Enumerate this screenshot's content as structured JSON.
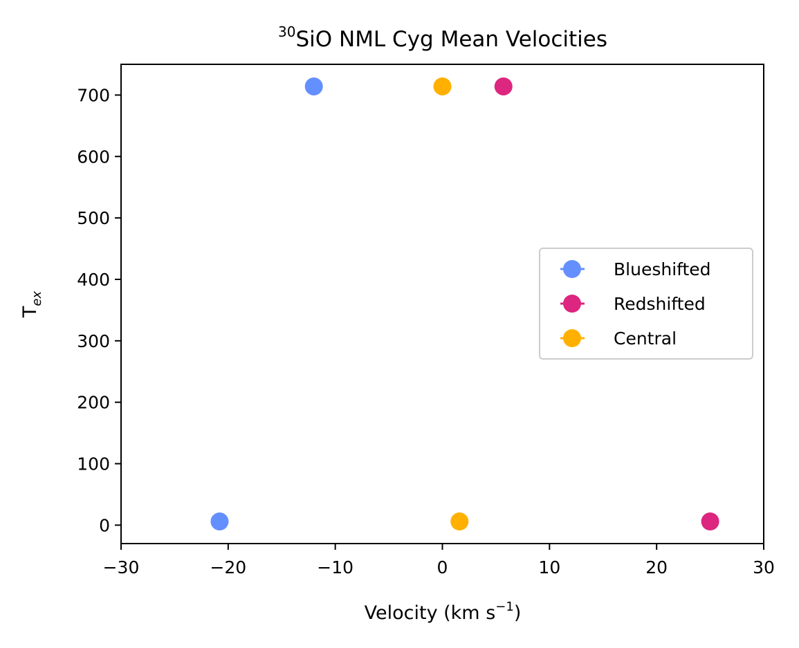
{
  "chart_data": {
    "type": "scatter",
    "title_sup": "30",
    "title": "SiO NML Cyg Mean Velocities",
    "xlabel": "Velocity (km s",
    "xlabel_sup": "−1",
    "xlabel_tail": ")",
    "ylabel": "T",
    "ylabel_sub": "ex",
    "xlim": [
      -30,
      30
    ],
    "ylim": [
      -30,
      750
    ],
    "xticks": [
      -30,
      -20,
      -10,
      0,
      10,
      20,
      30
    ],
    "xtick_labels": [
      "−30",
      "−20",
      "−10",
      "0",
      "10",
      "20",
      "30"
    ],
    "yticks": [
      0,
      100,
      200,
      300,
      400,
      500,
      600,
      700
    ],
    "ytick_labels": [
      "0",
      "100",
      "200",
      "300",
      "400",
      "500",
      "600",
      "700"
    ],
    "grid": false,
    "legend_position": "center-right",
    "series": [
      {
        "name": "Blueshifted",
        "color": "#648fff",
        "points": [
          {
            "x": -20.8,
            "y": 6
          },
          {
            "x": -12.0,
            "y": 714
          }
        ]
      },
      {
        "name": "Redshifted",
        "color": "#dc267f",
        "points": [
          {
            "x": 25.0,
            "y": 6
          },
          {
            "x": 5.7,
            "y": 714
          }
        ]
      },
      {
        "name": "Central",
        "color": "#ffb000",
        "points": [
          {
            "x": 1.6,
            "y": 6
          },
          {
            "x": 0.0,
            "y": 714
          }
        ]
      }
    ]
  }
}
